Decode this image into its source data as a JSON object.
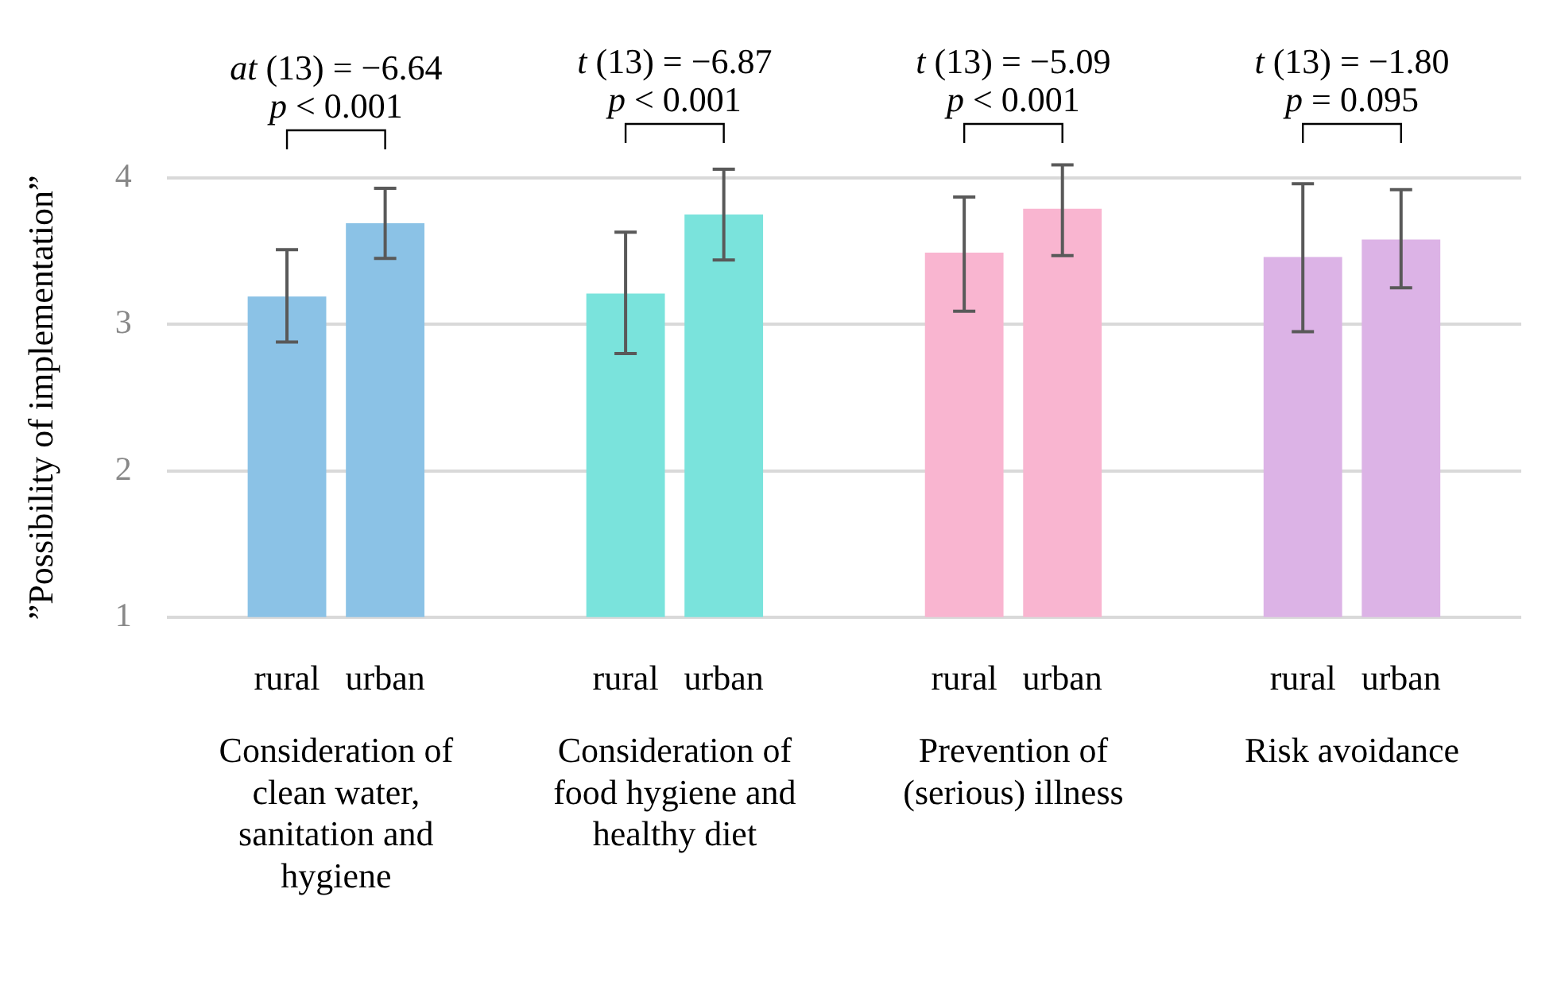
{
  "chart_data": {
    "type": "bar",
    "ylabel": "”Possibility of implementation”",
    "categories": [
      "Consideration of clean water, sanitation and hygiene",
      "Consideration of food hygiene and healthy diet",
      "Prevention of (serious) illness",
      "Risk avoidance"
    ],
    "series": [
      {
        "name": "rural",
        "colors": [
          "#8bc2e6",
          "#7ae3dc",
          "#f9b5d0",
          "#dcb3e6"
        ],
        "values": [
          3.19,
          3.21,
          3.49,
          3.46
        ],
        "errors": [
          [
            2.88,
            3.51
          ],
          [
            2.8,
            3.63
          ],
          [
            3.09,
            3.87
          ],
          [
            2.95,
            3.96
          ]
        ]
      },
      {
        "name": "urban",
        "colors": [
          "#8bc2e6",
          "#7ae3dc",
          "#f9b5d0",
          "#dcb3e6"
        ],
        "values": [
          3.69,
          3.75,
          3.79,
          3.58
        ],
        "errors": [
          [
            3.45,
            3.93
          ],
          [
            3.44,
            4.06
          ],
          [
            3.47,
            4.09
          ],
          [
            3.25,
            3.92
          ]
        ]
      }
    ],
    "ylim": [
      1,
      4
    ],
    "yticks": [
      1,
      2,
      3,
      4
    ],
    "grid": "y",
    "legend": false,
    "annotations": [
      "at (13) = −6.64",
      "p < 0.001",
      "t (13) = −6.87",
      "p < 0.001",
      "t (13) = −5.09",
      "p < 0.001",
      "t (13) = −1.80",
      "p = 0.095"
    ]
  }
}
